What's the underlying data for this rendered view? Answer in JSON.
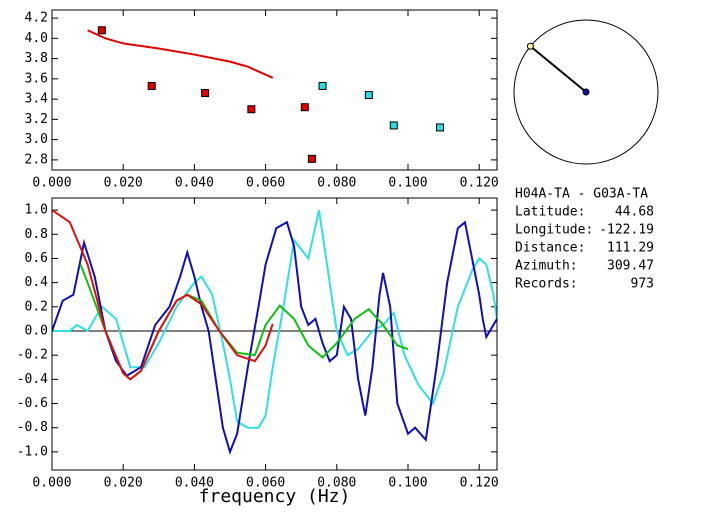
{
  "chart_data": [
    {
      "type": "scatter",
      "xlim": [
        0,
        0.125
      ],
      "ylim": [
        2.7,
        4.28
      ],
      "xticks": [
        {
          "value": 0,
          "label": "0.000"
        },
        {
          "value": 0.02,
          "label": "0.020"
        },
        {
          "value": 0.04,
          "label": "0.040"
        },
        {
          "value": 0.06,
          "label": "0.060"
        },
        {
          "value": 0.08,
          "label": "0.080"
        },
        {
          "value": 0.1,
          "label": "0.100"
        },
        {
          "value": 0.12,
          "label": "0.120"
        }
      ],
      "yticks": [
        2.8,
        {
          "value": 3,
          "label": "3.0"
        },
        3.2,
        3.4,
        3.6,
        3.8,
        {
          "value": 4,
          "label": "4.0"
        },
        4.2
      ],
      "series": [
        {
          "style": "line",
          "color": "#e00000",
          "x": [
            0.01,
            0.015,
            0.02,
            0.03,
            0.04,
            0.05,
            0.055,
            0.062
          ],
          "values": [
            4.08,
            4.0,
            3.95,
            3.9,
            3.84,
            3.77,
            3.72,
            3.61
          ]
        },
        {
          "style": "square",
          "color": "#e00000",
          "x": [
            0.014,
            0.028,
            0.043,
            0.056,
            0.071,
            0.073
          ],
          "values": [
            4.08,
            3.53,
            3.46,
            3.3,
            3.32,
            2.81
          ]
        },
        {
          "style": "square",
          "color": "#30d8e0",
          "x": [
            0.076,
            0.089,
            0.096,
            0.109
          ],
          "values": [
            3.53,
            3.44,
            3.14,
            3.12
          ]
        }
      ]
    },
    {
      "type": "line",
      "xlabel": "frequency (Hz)",
      "xlim": [
        0,
        0.125
      ],
      "ylim": [
        -1.15,
        1.1
      ],
      "xticks": [
        {
          "value": 0,
          "label": "0.000"
        },
        {
          "value": 0.02,
          "label": "0.020"
        },
        {
          "value": 0.04,
          "label": "0.040"
        },
        {
          "value": 0.06,
          "label": "0.060"
        },
        {
          "value": 0.08,
          "label": "0.080"
        },
        {
          "value": 0.1,
          "label": "0.100"
        },
        {
          "value": 0.12,
          "label": "0.120"
        }
      ],
      "yticks": [
        {
          "value": -1,
          "label": "-1.0"
        },
        -0.8,
        -0.6,
        -0.4,
        -0.2,
        {
          "value": 0,
          "label": "0.0"
        },
        0.2,
        0.4,
        0.6,
        0.8,
        {
          "value": 1,
          "label": "1.0"
        }
      ],
      "series": [
        {
          "color": "#30e0e0",
          "x": [
            0,
            0.005,
            0.007,
            0.01,
            0.014,
            0.018,
            0.022,
            0.026,
            0.03,
            0.035,
            0.04,
            0.042,
            0.045,
            0.048,
            0.05,
            0.052,
            0.055,
            0.058,
            0.06,
            0.062,
            0.065,
            0.068,
            0.072,
            0.075,
            0.078,
            0.08,
            0.083,
            0.086,
            0.09,
            0.093,
            0.096,
            0.099,
            0.103,
            0.107,
            0.11,
            0.114,
            0.118,
            0.12,
            0.122,
            0.124,
            0.125
          ],
          "values": [
            0.0,
            0.0,
            0.05,
            0.0,
            0.2,
            0.1,
            -0.3,
            -0.3,
            -0.1,
            0.2,
            0.4,
            0.45,
            0.3,
            -0.1,
            -0.4,
            -0.75,
            -0.8,
            -0.8,
            -0.7,
            -0.3,
            0.2,
            0.75,
            0.6,
            1.0,
            0.4,
            0.0,
            -0.2,
            -0.15,
            0.0,
            0.05,
            0.15,
            -0.2,
            -0.45,
            -0.6,
            -0.35,
            0.2,
            0.5,
            0.6,
            0.55,
            0.3,
            0.1
          ]
        },
        {
          "color": "#1010b0",
          "x": [
            0,
            0.003,
            0.006,
            0.009,
            0.012,
            0.015,
            0.018,
            0.021,
            0.025,
            0.029,
            0.033,
            0.036,
            0.038,
            0.04,
            0.042,
            0.044,
            0.046,
            0.048,
            0.05,
            0.052,
            0.055,
            0.058,
            0.06,
            0.063,
            0.066,
            0.068,
            0.07,
            0.072,
            0.074,
            0.076,
            0.078,
            0.08,
            0.082,
            0.084,
            0.086,
            0.088,
            0.09,
            0.092,
            0.093,
            0.095,
            0.097,
            0.1,
            0.102,
            0.105,
            0.108,
            0.111,
            0.114,
            0.116,
            0.118,
            0.12,
            0.121,
            0.122,
            0.124,
            0.125
          ],
          "values": [
            0.0,
            0.25,
            0.3,
            0.73,
            0.45,
            0.0,
            -0.25,
            -0.37,
            -0.3,
            0.05,
            0.2,
            0.45,
            0.65,
            0.45,
            0.2,
            0.0,
            -0.4,
            -0.8,
            -1.0,
            -0.85,
            -0.3,
            0.2,
            0.55,
            0.85,
            0.9,
            0.7,
            0.2,
            0.05,
            0.1,
            -0.1,
            -0.25,
            -0.2,
            0.2,
            0.1,
            -0.4,
            -0.7,
            -0.3,
            0.3,
            0.48,
            0.2,
            -0.6,
            -0.85,
            -0.8,
            -0.9,
            -0.3,
            0.4,
            0.85,
            0.9,
            0.6,
            0.3,
            0.1,
            -0.05,
            0.05,
            0.1
          ]
        },
        {
          "color": "#10c010",
          "x": [
            0.008,
            0.01,
            0.015,
            0.02,
            0.022,
            0.025,
            0.03,
            0.035,
            0.038,
            0.042,
            0.047,
            0.052,
            0.057,
            0.06,
            0.064,
            0.068,
            0.072,
            0.076,
            0.08,
            0.085,
            0.089,
            0.093,
            0.097,
            0.1
          ],
          "values": [
            0.55,
            0.4,
            0.0,
            -0.35,
            -0.4,
            -0.33,
            0.0,
            0.25,
            0.3,
            0.25,
            0.0,
            -0.18,
            -0.2,
            0.05,
            0.21,
            0.1,
            -0.12,
            -0.22,
            -0.1,
            0.1,
            0.18,
            0.05,
            -0.12,
            -0.15
          ]
        },
        {
          "color": "#e01010",
          "x": [
            0,
            0.005,
            0.01,
            0.015,
            0.02,
            0.022,
            0.025,
            0.03,
            0.035,
            0.038,
            0.042,
            0.047,
            0.052,
            0.057,
            0.06,
            0.062
          ],
          "values": [
            1.0,
            0.9,
            0.55,
            0.0,
            -0.35,
            -0.4,
            -0.33,
            0.0,
            0.25,
            0.3,
            0.22,
            0.0,
            -0.2,
            -0.25,
            -0.12,
            0.06
          ]
        }
      ]
    }
  ],
  "info": {
    "title": "H04A-TA - G03A-TA",
    "rows": [
      {
        "label": "Latitude:",
        "value": 44.68
      },
      {
        "label": "Longitude:",
        "value": -122.19
      },
      {
        "label": "Distance:",
        "value": 111.29
      },
      {
        "label": "Azimuth:",
        "value": 309.47
      },
      {
        "label": "Records:",
        "value": 973
      }
    ]
  }
}
